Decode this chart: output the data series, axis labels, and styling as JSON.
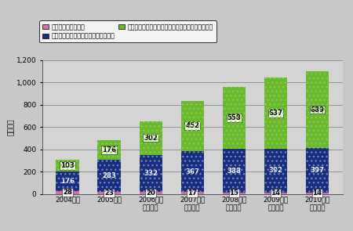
{
  "categories": [
    "2004年度",
    "2005年度",
    "2006年度\n（見込）",
    "2007年度\n（予測）",
    "2008年度\n（予測）",
    "2009年度\n（予測）",
    "2010年度\n（予測）"
  ],
  "software": [
    28,
    23,
    20,
    17,
    15,
    14,
    14
  ],
  "publishing_fixed": [
    176,
    283,
    332,
    367,
    388,
    392,
    397
  ],
  "publishing_item": [
    103,
    176,
    302,
    452,
    558,
    637,
    689
  ],
  "color_software": "#d070a0",
  "color_fixed": "#1a2d7a",
  "color_item": "#6ab830",
  "legend_software": "ソフトウェア売上高",
  "legend_fixed": "パブリッシング売上高（定額課金型）",
  "legend_item": "パブリッシング売上高（アイテム課金型・その他）",
  "ylabel": "（億円）",
  "ylim": [
    0,
    1200
  ],
  "yticks": [
    0,
    200,
    400,
    600,
    800,
    1000,
    1200
  ],
  "bar_width": 0.55,
  "outer_bg": "#c8c8c8",
  "plot_bg": "#d4d4d4",
  "grid_color": "#888888"
}
